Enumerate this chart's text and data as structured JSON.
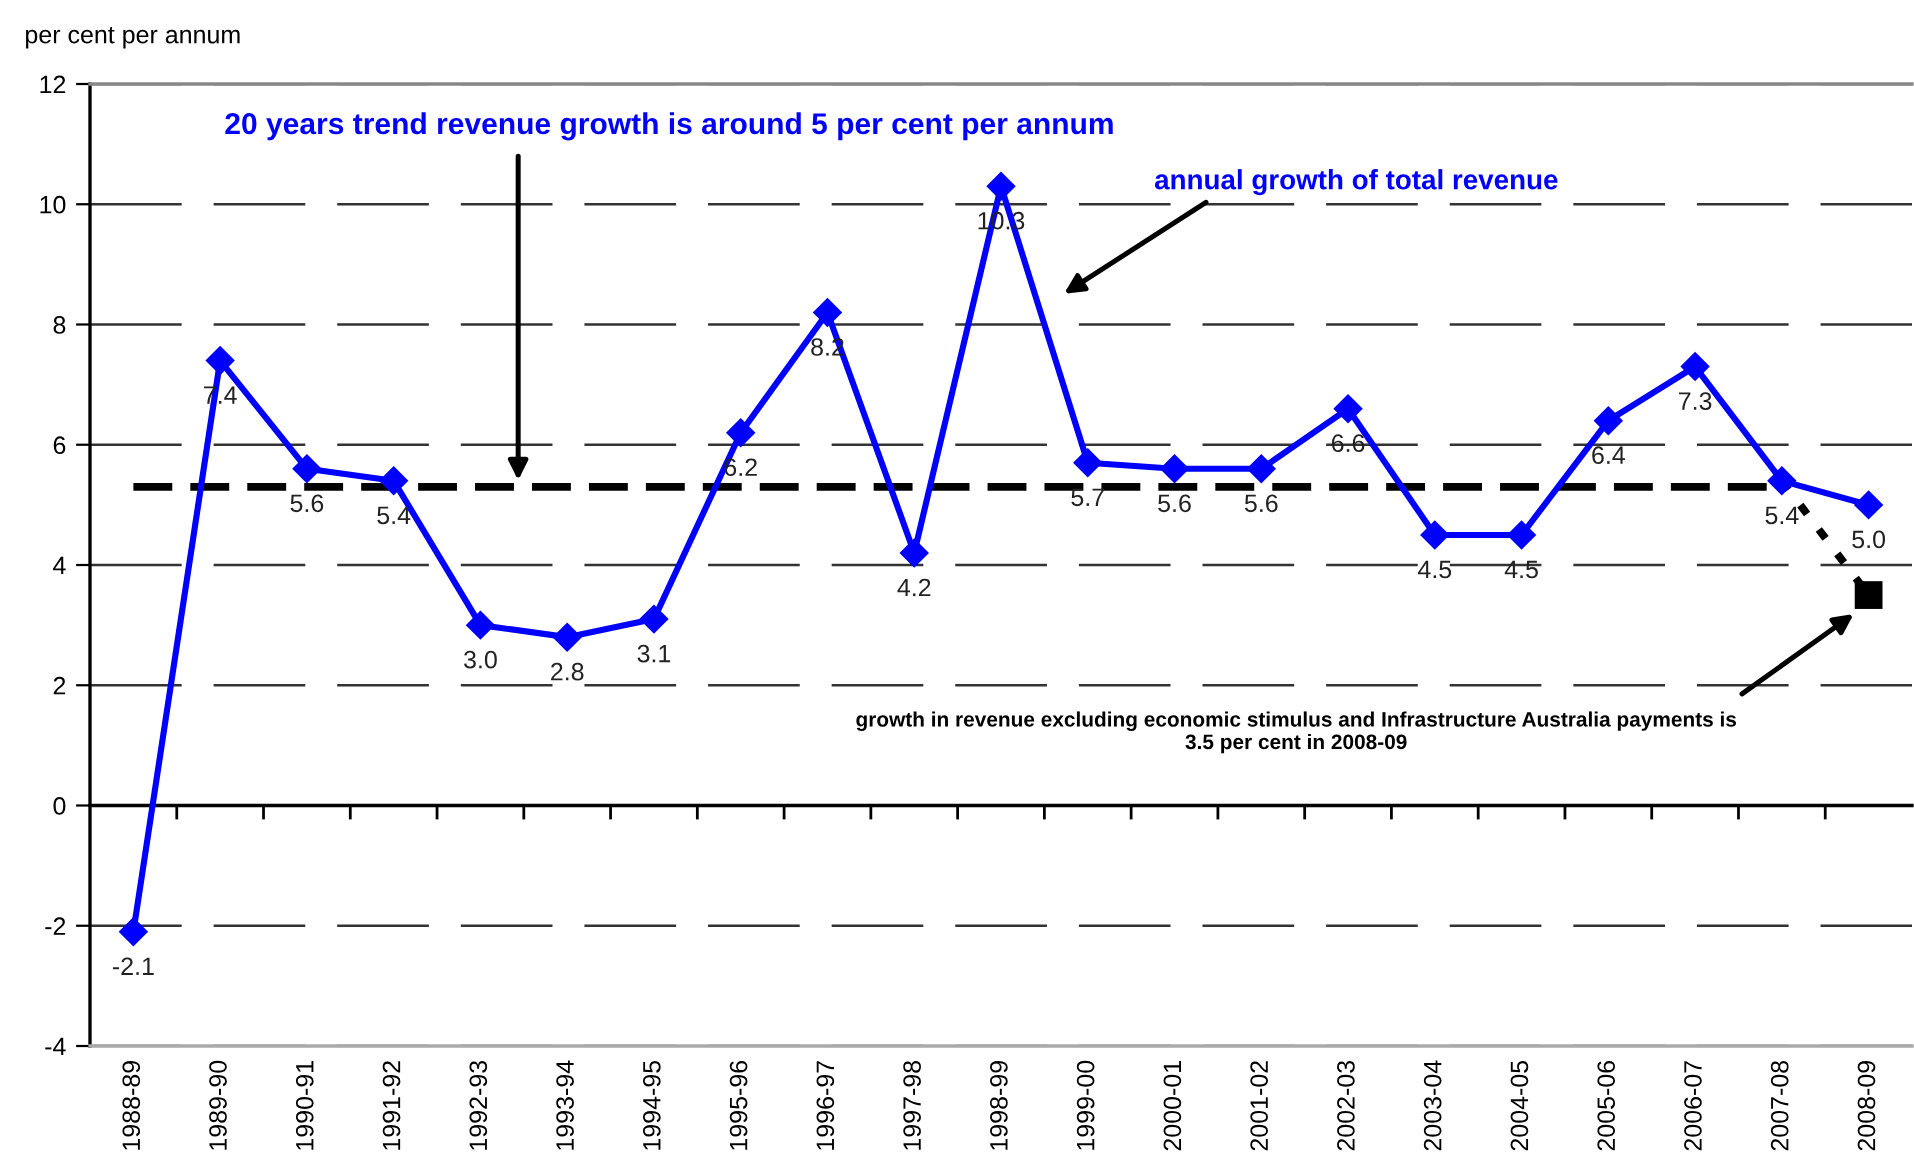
{
  "chart_data": {
    "type": "line",
    "ylabel": "per cent per annum",
    "categories": [
      "1988-89",
      "1989-90",
      "1990-91",
      "1991-92",
      "1992-93",
      "1993-94",
      "1994-95",
      "1995-96",
      "1996-97",
      "1997-98",
      "1998-99",
      "1999-00",
      "2000-01",
      "2001-02",
      "2002-03",
      "2003-04",
      "2004-05",
      "2005-06",
      "2006-07",
      "2007-08",
      "2008-09"
    ],
    "series": [
      {
        "color": "#0000ff",
        "marker": "diamond",
        "line_style": "solid",
        "values": [
          -2.1,
          7.4,
          5.6,
          5.4,
          3.0,
          2.8,
          3.1,
          6.2,
          8.2,
          4.2,
          10.3,
          5.7,
          5.6,
          5.6,
          6.6,
          4.5,
          4.5,
          6.4,
          7.3,
          5.4,
          5.0
        ],
        "value_labels": [
          "-2.1",
          "7.4",
          "5.6",
          "5.4",
          "3.0",
          "2.8",
          "3.1",
          "6.2",
          "8.2",
          "4.2",
          "10.3",
          "5.7",
          "5.6",
          "5.6",
          "6.6",
          "4.5",
          "4.5",
          "6.4",
          "7.3",
          "5.4",
          "5.0"
        ]
      },
      {
        "color": "#000000",
        "marker": "none",
        "line_style": "dashed",
        "values": [
          5.3,
          5.3,
          5.3,
          5.3,
          5.3,
          5.3,
          5.3,
          5.3,
          5.3,
          5.3,
          5.3,
          5.3,
          5.3,
          5.3,
          5.3,
          5.3,
          5.3,
          5.3,
          5.3,
          5.3,
          null
        ]
      },
      {
        "color": "#000000",
        "marker": "none",
        "line_style": "dotted",
        "values": [
          null,
          null,
          null,
          null,
          null,
          null,
          null,
          null,
          null,
          null,
          null,
          null,
          null,
          null,
          null,
          null,
          null,
          null,
          null,
          5.4,
          3.5
        ]
      },
      {
        "type": "scatter",
        "color": "#000000",
        "marker": "square",
        "values": [
          null,
          null,
          null,
          null,
          null,
          null,
          null,
          null,
          null,
          null,
          null,
          null,
          null,
          null,
          null,
          null,
          null,
          null,
          null,
          null,
          3.5
        ]
      }
    ],
    "ylim": [
      -4,
      12
    ],
    "yticks": [
      -4,
      -2,
      0,
      2,
      4,
      6,
      8,
      10,
      12
    ],
    "grid": "y",
    "annotations": [
      "20 years trend revenue growth is around 5 per cent per annum",
      "annual growth of total revenue",
      "growth in revenue excluding economic stimulus and Infrastructure Australia payments is\n3.5 per cent in 2008-09"
    ]
  }
}
